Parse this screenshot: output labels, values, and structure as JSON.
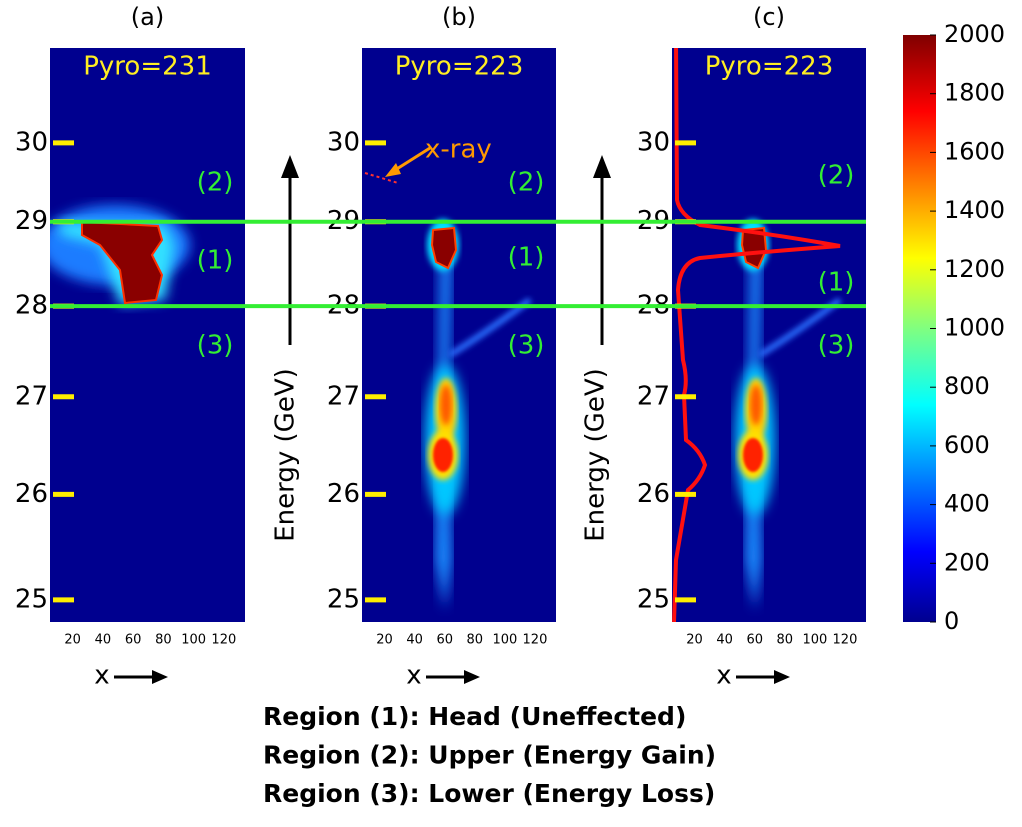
{
  "chart_data": [
    {
      "type": "heatmap",
      "title": "(a)",
      "annotation": "Pyro=231",
      "region_labels": [
        "(2)",
        "(1)",
        "(3)"
      ],
      "xlabel": "x",
      "xlim": [
        5,
        134
      ],
      "xticks": [
        20,
        40,
        60,
        80,
        100,
        120
      ],
      "ylim": [
        24.8,
        31.3
      ],
      "yticks": [
        25,
        26,
        27,
        28,
        29,
        30
      ],
      "yscale": "reciprocal"
    },
    {
      "type": "heatmap",
      "title": "(b)",
      "annotation": "Pyro=223",
      "region_labels": [
        "(2)",
        "(1)",
        "(3)"
      ],
      "marker_label": "x-ray",
      "xlabel": "x",
      "ylabel": "Energy (GeV)",
      "xlim": [
        5,
        134
      ],
      "xticks": [
        20,
        40,
        60,
        80,
        100,
        120
      ],
      "ylim": [
        24.8,
        31.3
      ],
      "yticks": [
        25,
        26,
        27,
        28,
        29,
        30
      ],
      "yscale": "reciprocal"
    },
    {
      "type": "heatmap",
      "title": "(c)",
      "annotation": "Pyro=223",
      "region_labels": [
        "(2)",
        "(1)",
        "(3)"
      ],
      "xlabel": "x",
      "ylabel": "Energy (GeV)",
      "xlim": [
        5,
        134
      ],
      "xticks": [
        20,
        40,
        60,
        80,
        100,
        120
      ],
      "ylim": [
        24.8,
        31.3
      ],
      "yticks": [
        25,
        26,
        27,
        28,
        29,
        30
      ],
      "yscale": "reciprocal"
    }
  ],
  "region_boundaries": [
    29,
    28
  ],
  "colorbar": {
    "lim": [
      0,
      2000
    ],
    "ticks": [
      0,
      200,
      400,
      600,
      800,
      1000,
      1200,
      1400,
      1600,
      1800,
      2000
    ]
  },
  "notes": [
    "Region (1): Head (Uneffected)",
    "Region (2): Upper (Energy Gain)",
    "Region (3): Lower (Energy Loss)"
  ]
}
